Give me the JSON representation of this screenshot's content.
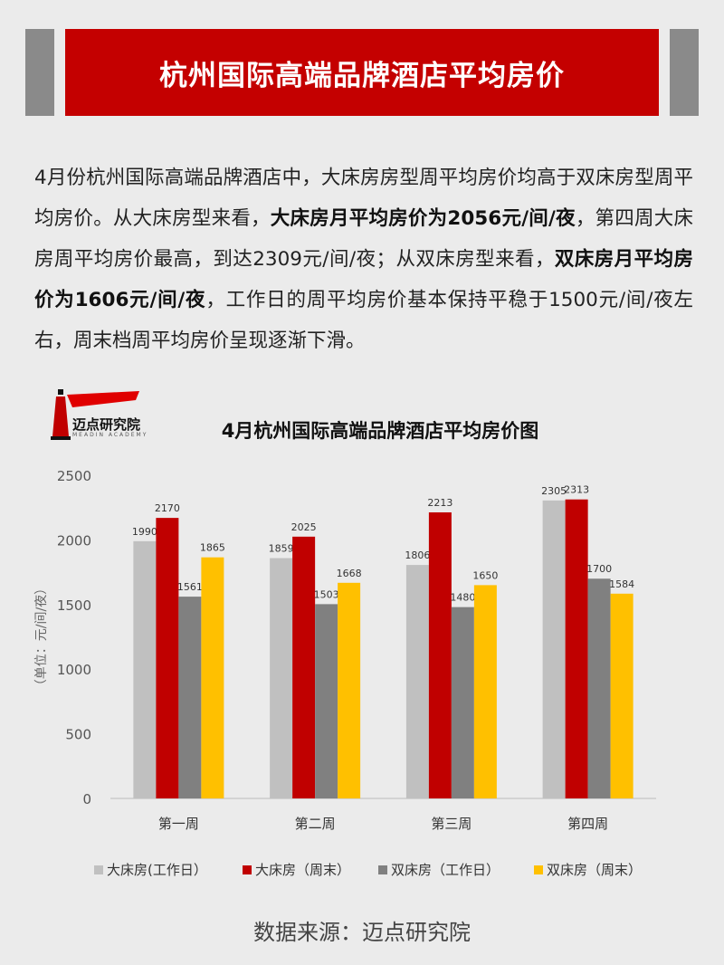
{
  "header": {
    "title": "杭州国际高端品牌酒店平均房价"
  },
  "intro": {
    "p1": "4月份杭州国际高端品牌酒店中，大床房房型周平均房价均高于双床房型周平均房价。从大床房型来看，",
    "b1": "大床房月平均房价为2056元/间/夜",
    "p2": "，第四周大床房周平均房价最高，到达2309元/间/夜；从双床房型来看，",
    "b2": "双床房月平均房价为1606元/间/夜",
    "p3": "，工作日的周平均房价基本保持平稳于1500元/间/夜左右，周末档周平均房价呈现逐渐下滑。"
  },
  "logo": {
    "name": "迈点研究院",
    "sub": "MEADIN ACADEMY"
  },
  "source": "数据来源：迈点研究院",
  "chart_data": {
    "type": "bar",
    "title": "4月杭州国际高端品牌酒店平均房价图",
    "ylabel": "（单位：元/间/夜）",
    "ylim": [
      0,
      2500
    ],
    "yticks": [
      0,
      500,
      1000,
      1500,
      2000,
      2500
    ],
    "categories": [
      "第一周",
      "第二周",
      "第三周",
      "第四周"
    ],
    "series": [
      {
        "name": "大床房(工作日）",
        "color": "#c0c0c0",
        "values": [
          1990,
          1859,
          1806,
          2305
        ]
      },
      {
        "name": "大床房（周末）",
        "color": "#c00000",
        "values": [
          2170,
          2025,
          2213,
          2313
        ]
      },
      {
        "name": "双床房（工作日）",
        "color": "#808080",
        "values": [
          1561,
          1503,
          1480,
          1700
        ]
      },
      {
        "name": "双床房（周末）",
        "color": "#ffc000",
        "values": [
          1865,
          1668,
          1650,
          1584
        ]
      }
    ],
    "grid": false,
    "legend": "bottom"
  }
}
